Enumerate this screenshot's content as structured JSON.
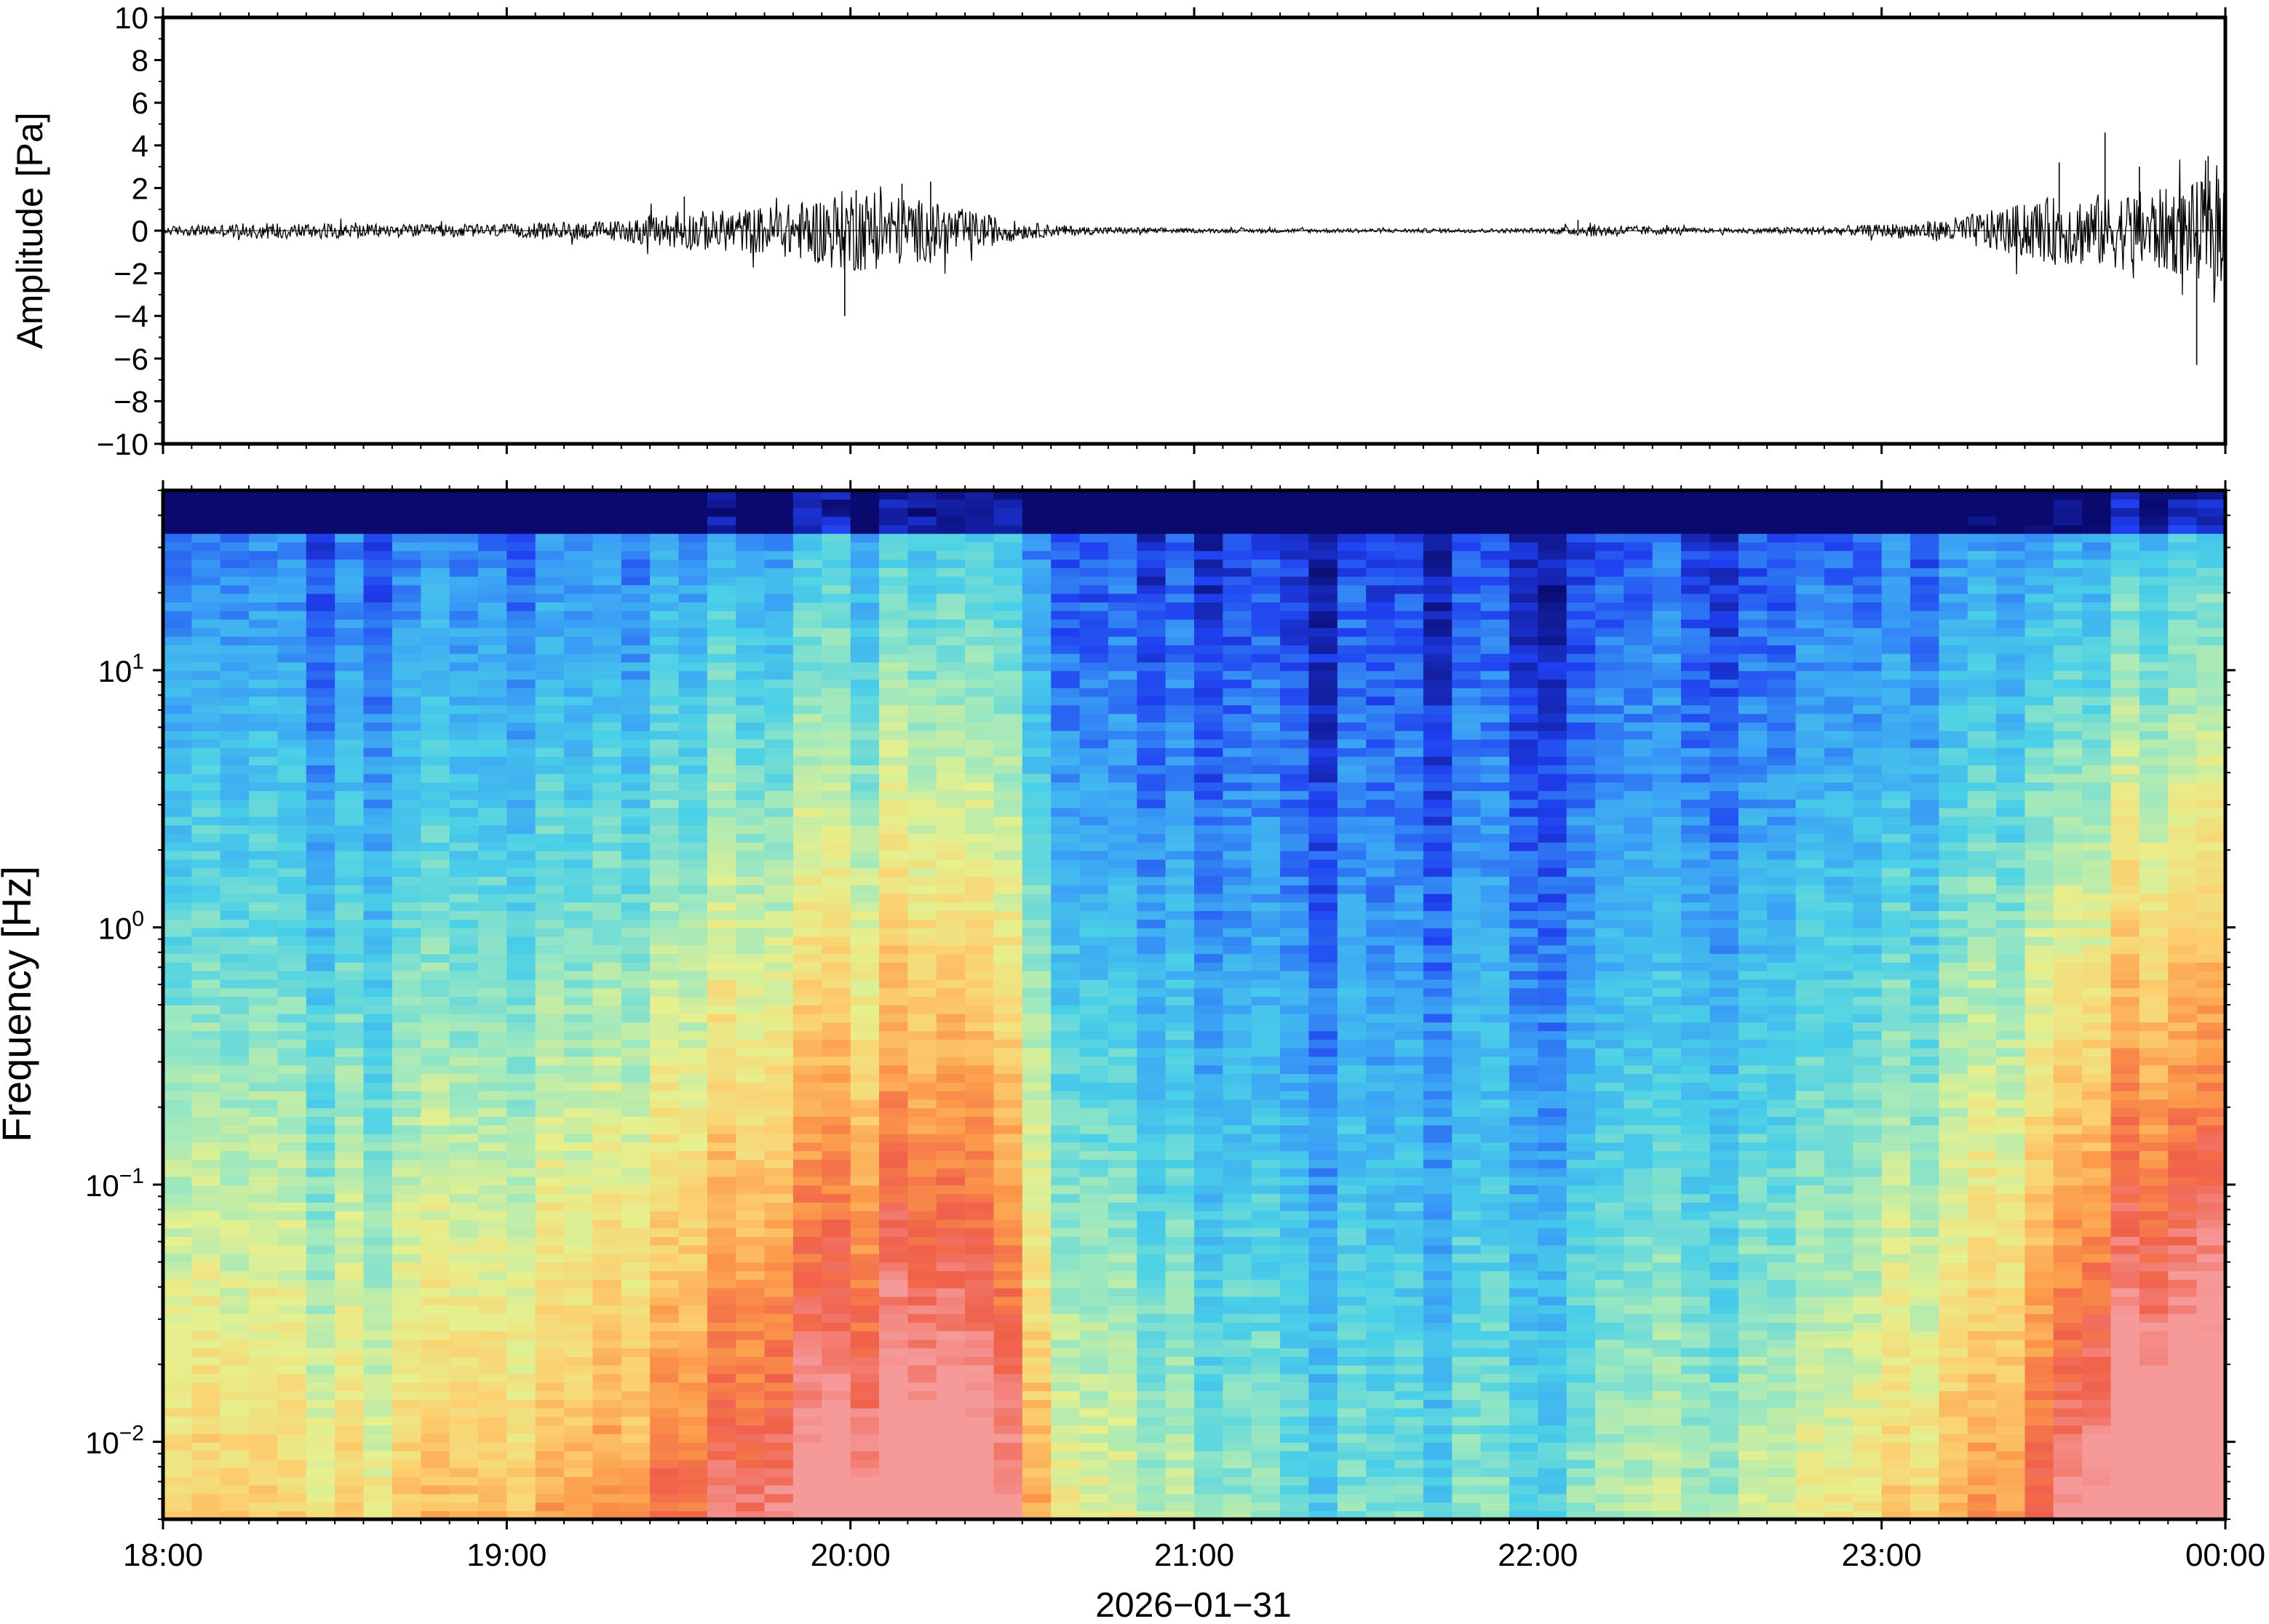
{
  "chart_data": [
    {
      "type": "line",
      "ylabel": "Amplitude [Pa]",
      "ylim": [
        -10,
        10
      ],
      "ytick_values": [
        10,
        8,
        6,
        4,
        2,
        0,
        -2,
        -4,
        -6,
        -8,
        -10
      ],
      "ytick_labels": [
        "10",
        "8",
        "6",
        "4",
        "2",
        "0",
        "−2",
        "−4",
        "−6",
        "−8",
        "−10"
      ],
      "x_range": [
        "18:00",
        "00:00"
      ],
      "envelope": {
        "times": [
          "18:00",
          "18:20",
          "18:40",
          "19:00",
          "19:20",
          "19:30",
          "19:40",
          "19:50",
          "20:00",
          "20:10",
          "20:20",
          "20:30",
          "20:40",
          "21:00",
          "21:30",
          "22:00",
          "22:10",
          "22:30",
          "22:50",
          "23:00",
          "23:10",
          "23:20",
          "23:30",
          "23:40",
          "23:50",
          "00:00"
        ],
        "amplitude_pa": [
          0.2,
          0.4,
          0.3,
          0.3,
          0.5,
          0.9,
          1.0,
          1.3,
          2.0,
          1.6,
          1.0,
          0.4,
          0.2,
          0.1,
          0.1,
          0.1,
          0.3,
          0.1,
          0.2,
          0.3,
          0.5,
          1.0,
          1.6,
          1.8,
          2.0,
          2.6
        ]
      },
      "peaks": [
        {
          "time": "19:31",
          "value_pa": 1.6
        },
        {
          "time": "19:59",
          "value_pa": -4.0
        },
        {
          "time": "20:01",
          "value_pa": 1.9
        },
        {
          "time": "20:09",
          "value_pa": 2.2
        },
        {
          "time": "20:14",
          "value_pa": 2.3
        },
        {
          "time": "22:07",
          "value_pa": 0.5
        },
        {
          "time": "23:31",
          "value_pa": 3.2
        },
        {
          "time": "23:39",
          "value_pa": 4.6
        },
        {
          "time": "23:45",
          "value_pa": 3.0
        },
        {
          "time": "23:55",
          "value_pa": -6.3
        },
        {
          "time": "23:57",
          "value_pa": 3.5
        }
      ]
    },
    {
      "type": "heatmap",
      "ylabel": "Frequency [Hz]",
      "xlabel": "2026−01−31",
      "x_tick_labels": [
        "18:00",
        "19:00",
        "20:00",
        "21:00",
        "22:00",
        "23:00",
        "00:00"
      ],
      "y_scale": "log",
      "ylim_hz": [
        0.005,
        50
      ],
      "y_tick_values": [
        0.01,
        0.1,
        1,
        10
      ],
      "y_tick_labels": [
        {
          "base": "10",
          "exp": "−2"
        },
        {
          "base": "10",
          "exp": "−1"
        },
        {
          "base": "10",
          "exp": "0"
        },
        {
          "base": "10",
          "exp": "1"
        }
      ],
      "colormap": "rainbow (dark blue = low power, pink/red = high power)",
      "colormap_stops": [
        "#0a0a6e",
        "#1f3ff0",
        "#3aa0f5",
        "#4ad0e8",
        "#9ce8c0",
        "#e6f08e",
        "#fcd070",
        "#fc9a4a",
        "#f0604a",
        "#f59a9a"
      ],
      "power_profile": {
        "times": [
          "18:00",
          "18:30",
          "19:00",
          "19:30",
          "19:50",
          "20:10",
          "20:25",
          "20:35",
          "21:00",
          "21:30",
          "22:00",
          "22:20",
          "22:50",
          "23:10",
          "23:20",
          "23:40",
          "00:00"
        ],
        "activity_level": [
          0.45,
          0.45,
          0.5,
          0.65,
          0.8,
          0.88,
          0.85,
          0.45,
          0.3,
          0.2,
          0.25,
          0.3,
          0.38,
          0.5,
          0.55,
          0.92,
          0.95
        ]
      }
    }
  ]
}
